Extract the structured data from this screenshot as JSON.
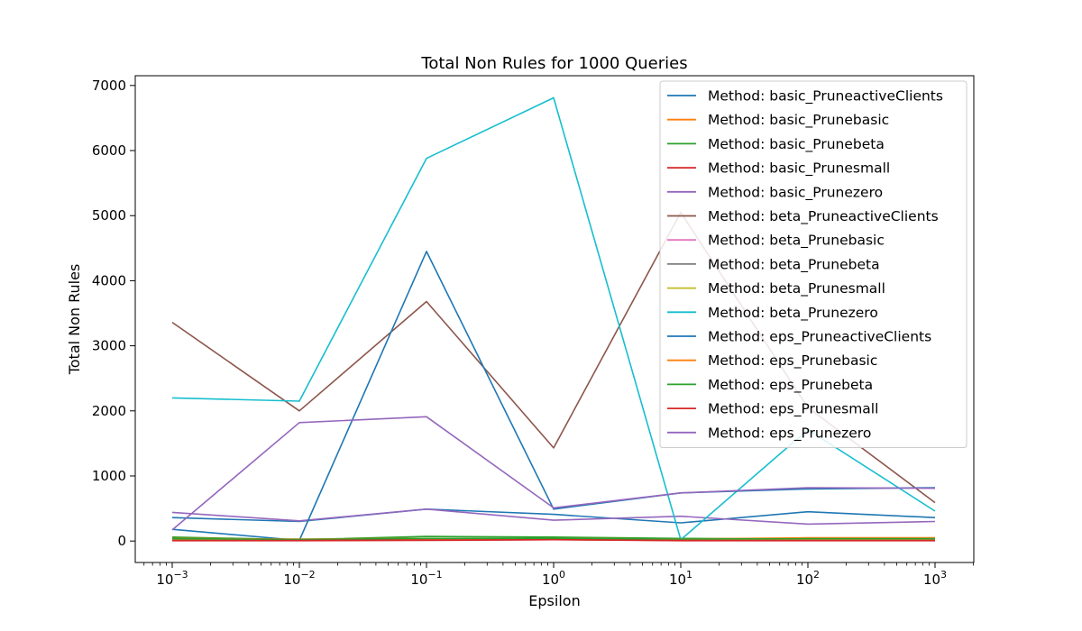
{
  "chart_data": {
    "type": "line",
    "title": "Total Non Rules for 1000 Queries",
    "xlabel": "Epsilon",
    "ylabel": "Total Non Rules",
    "x_scale": "log",
    "x": [
      0.001,
      0.01,
      0.1,
      1,
      10,
      100,
      1000
    ],
    "x_tick_labels": [
      {
        "base": "10",
        "exp": "−3"
      },
      {
        "base": "10",
        "exp": "−2"
      },
      {
        "base": "10",
        "exp": "−1"
      },
      {
        "base": "10",
        "exp": "0"
      },
      {
        "base": "10",
        "exp": "1"
      },
      {
        "base": "10",
        "exp": "2"
      },
      {
        "base": "10",
        "exp": "3"
      }
    ],
    "ylim": [
      -330,
      7150
    ],
    "y_ticks": [
      0,
      1000,
      2000,
      3000,
      4000,
      5000,
      6000,
      7000
    ],
    "y_tick_labels": [
      "0",
      "1000",
      "2000",
      "3000",
      "4000",
      "5000",
      "6000",
      "7000"
    ],
    "grid": false,
    "legend_position": "top-right",
    "series": [
      {
        "name": "Method: basic_PruneactiveClients",
        "color": "#1f77b4",
        "values": [
          360,
          300,
          490,
          410,
          280,
          450,
          360
        ]
      },
      {
        "name": "Method: basic_Prunebasic",
        "color": "#ff7f0e",
        "values": [
          30,
          25,
          35,
          30,
          25,
          30,
          25
        ]
      },
      {
        "name": "Method: basic_Prunebeta",
        "color": "#2ca02c",
        "values": [
          60,
          20,
          70,
          60,
          40,
          30,
          40
        ]
      },
      {
        "name": "Method: basic_Prunesmall",
        "color": "#d62728",
        "values": [
          5,
          5,
          10,
          20,
          5,
          5,
          5
        ]
      },
      {
        "name": "Method: basic_Prunezero",
        "color": "#9467bd",
        "values": [
          440,
          310,
          490,
          320,
          380,
          260,
          300
        ]
      },
      {
        "name": "Method: beta_PruneactiveClients",
        "color": "#8c564b",
        "values": [
          3360,
          2000,
          3680,
          1430,
          5050,
          2050,
          590
        ]
      },
      {
        "name": "Method: beta_Prunebasic",
        "color": "#e377c2",
        "values": [
          20,
          20,
          25,
          25,
          20,
          20,
          20
        ]
      },
      {
        "name": "Method: beta_Prunebeta",
        "color": "#7f7f7f",
        "values": [
          25,
          25,
          30,
          30,
          25,
          25,
          25
        ]
      },
      {
        "name": "Method: beta_Prunesmall",
        "color": "#bcbd22",
        "values": [
          15,
          15,
          20,
          20,
          15,
          15,
          15
        ]
      },
      {
        "name": "Method: beta_Prunezero",
        "color": "#17becf",
        "values": [
          2200,
          2150,
          5880,
          6810,
          20,
          1710,
          460
        ]
      },
      {
        "name": "Method: eps_PruneactiveClients",
        "color": "#1f77b4",
        "values": [
          180,
          10,
          4450,
          490,
          740,
          800,
          820
        ]
      },
      {
        "name": "Method: eps_Prunebasic",
        "color": "#ff7f0e",
        "values": [
          40,
          30,
          40,
          40,
          30,
          50,
          50
        ]
      },
      {
        "name": "Method: eps_Prunebeta",
        "color": "#2ca02c",
        "values": [
          35,
          25,
          40,
          40,
          30,
          35,
          35
        ]
      },
      {
        "name": "Method: eps_Prunesmall",
        "color": "#d62728",
        "values": [
          10,
          10,
          15,
          20,
          10,
          10,
          10
        ]
      },
      {
        "name": "Method: eps_Prunezero",
        "color": "#9467bd",
        "values": [
          170,
          1820,
          1910,
          510,
          740,
          820,
          810
        ]
      }
    ]
  }
}
